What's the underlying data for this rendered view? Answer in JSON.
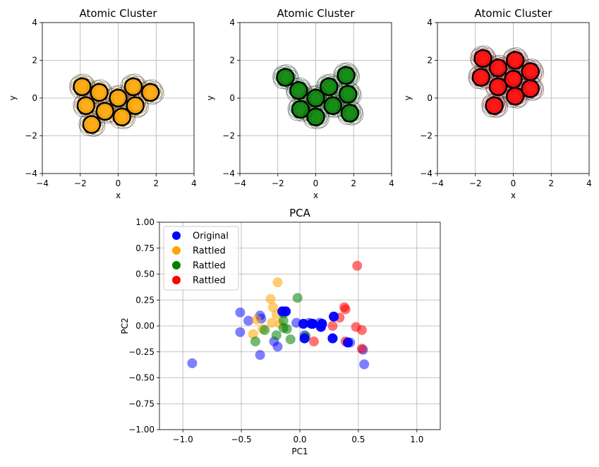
{
  "chart_data": [
    {
      "type": "scatter",
      "title": "Atomic Cluster",
      "xlabel": "x",
      "ylabel": "y",
      "xlim": [
        -4,
        4
      ],
      "ylim": [
        -4,
        4
      ],
      "xticks": [
        -4,
        -2,
        0,
        2,
        4
      ],
      "yticks": [
        -4,
        -2,
        0,
        2,
        4
      ],
      "grid": true,
      "series": [
        {
          "color": "#ffa500",
          "points": [
            [
              -1.9,
              0.6
            ],
            [
              -1.0,
              0.3
            ],
            [
              0.8,
              0.6
            ],
            [
              1.7,
              0.3
            ],
            [
              0.0,
              0.0
            ],
            [
              -1.7,
              -0.4
            ],
            [
              -0.7,
              -0.7
            ],
            [
              0.9,
              -0.4
            ],
            [
              0.2,
              -1.0
            ],
            [
              -1.4,
              -1.4
            ]
          ]
        }
      ]
    },
    {
      "type": "scatter",
      "title": "Atomic Cluster",
      "xlabel": "x",
      "ylabel": "y",
      "xlim": [
        -4,
        4
      ],
      "ylim": [
        -4,
        4
      ],
      "xticks": [
        -4,
        -2,
        0,
        2,
        4
      ],
      "yticks": [
        -4,
        -2,
        0,
        2,
        4
      ],
      "grid": true,
      "series": [
        {
          "color": "#008000",
          "points": [
            [
              -1.6,
              1.1
            ],
            [
              1.6,
              1.2
            ],
            [
              -0.9,
              0.4
            ],
            [
              0.7,
              0.6
            ],
            [
              1.7,
              0.2
            ],
            [
              0.0,
              0.0
            ],
            [
              -0.8,
              -0.6
            ],
            [
              0.9,
              -0.4
            ],
            [
              0.0,
              -1.0
            ],
            [
              1.8,
              -0.8
            ]
          ]
        }
      ]
    },
    {
      "type": "scatter",
      "title": "Atomic Cluster",
      "xlabel": "x",
      "ylabel": "y",
      "xlim": [
        -4,
        4
      ],
      "ylim": [
        -4,
        4
      ],
      "xticks": [
        -4,
        -2,
        0,
        2,
        4
      ],
      "yticks": [
        -4,
        -2,
        0,
        2,
        4
      ],
      "grid": true,
      "series": [
        {
          "color": "#ff0000",
          "points": [
            [
              -1.6,
              2.1
            ],
            [
              0.1,
              2.0
            ],
            [
              -1.7,
              1.1
            ],
            [
              -0.8,
              1.6
            ],
            [
              0.0,
              1.0
            ],
            [
              0.9,
              1.4
            ],
            [
              -0.8,
              0.6
            ],
            [
              0.1,
              0.1
            ],
            [
              0.9,
              0.5
            ],
            [
              -1.0,
              -0.4
            ]
          ]
        }
      ]
    },
    {
      "type": "scatter",
      "title": "PCA",
      "xlabel": "PC1",
      "ylabel": "PC2",
      "xlim": [
        -1.2,
        1.2
      ],
      "ylim": [
        -1.0,
        1.0
      ],
      "xticks": [
        -1.0,
        -0.5,
        0.0,
        0.5,
        1.0
      ],
      "xtick_labels": [
        "−1.0",
        "−0.5",
        "0.0",
        "0.5",
        "1.0"
      ],
      "yticks": [
        -1.0,
        -0.75,
        -0.5,
        -0.25,
        0.0,
        0.25,
        0.5,
        0.75,
        1.0
      ],
      "ytick_labels": [
        "−1.00",
        "−0.75",
        "−0.50",
        "−0.25",
        "0.00",
        "0.25",
        "0.50",
        "0.75",
        "1.00"
      ],
      "grid": true,
      "legend": "top-left",
      "series": [
        {
          "name": "Original",
          "color": "#0000ff",
          "points": [
            [
              0.11,
              0.02
            ],
            [
              0.19,
              0.02
            ],
            [
              0.29,
              0.09
            ],
            [
              0.28,
              -0.12
            ],
            [
              0.41,
              -0.16
            ],
            [
              -0.12,
              0.14
            ],
            [
              -0.15,
              0.14
            ],
            [
              0.03,
              0.02
            ],
            [
              0.1,
              0.02
            ],
            [
              0.18,
              -0.01
            ],
            [
              0.04,
              -0.12
            ]
          ]
        },
        {
          "name": "Rattled",
          "color": "#ffa500",
          "points": [
            [
              -0.19,
              0.42
            ],
            [
              -0.25,
              0.26
            ],
            [
              -0.23,
              0.18
            ],
            [
              -0.37,
              0.06
            ],
            [
              -0.2,
              0.11
            ],
            [
              -0.24,
              0.03
            ],
            [
              -0.4,
              -0.08
            ],
            [
              -0.17,
              0.02
            ],
            [
              -0.32,
              -0.03
            ]
          ]
        },
        {
          "name": "Rattled",
          "color": "#008000",
          "points": [
            [
              -0.02,
              0.27
            ],
            [
              -0.14,
              0.12
            ],
            [
              -0.14,
              0.05
            ],
            [
              -0.14,
              -0.02
            ],
            [
              -0.11,
              -0.03
            ],
            [
              -0.3,
              -0.04
            ],
            [
              -0.08,
              -0.13
            ],
            [
              -0.2,
              -0.09
            ],
            [
              -0.38,
              -0.15
            ],
            [
              0.05,
              -0.1
            ]
          ]
        },
        {
          "name": "Rattled",
          "color": "#ff0000",
          "points": [
            [
              0.49,
              0.58
            ],
            [
              0.38,
              0.18
            ],
            [
              0.39,
              0.16
            ],
            [
              0.34,
              0.08
            ],
            [
              0.28,
              0.0
            ],
            [
              0.48,
              -0.01
            ],
            [
              0.53,
              -0.04
            ],
            [
              0.39,
              -0.15
            ],
            [
              0.53,
              -0.22
            ],
            [
              0.12,
              -0.15
            ]
          ]
        },
        {
          "name": "",
          "color": "#0000ff",
          "faded": true,
          "points": [
            [
              -0.51,
              0.13
            ],
            [
              -0.44,
              0.05
            ],
            [
              -0.34,
              0.1
            ],
            [
              -0.33,
              0.07
            ],
            [
              -0.03,
              0.03
            ],
            [
              -0.51,
              -0.06
            ],
            [
              0.08,
              0.03
            ],
            [
              0.17,
              0.03
            ],
            [
              -0.22,
              -0.15
            ],
            [
              -0.19,
              -0.2
            ],
            [
              -0.34,
              -0.28
            ],
            [
              0.43,
              -0.16
            ],
            [
              0.54,
              -0.23
            ],
            [
              0.55,
              -0.37
            ],
            [
              -0.92,
              -0.36
            ],
            [
              0.04,
              -0.09
            ]
          ]
        }
      ]
    }
  ]
}
